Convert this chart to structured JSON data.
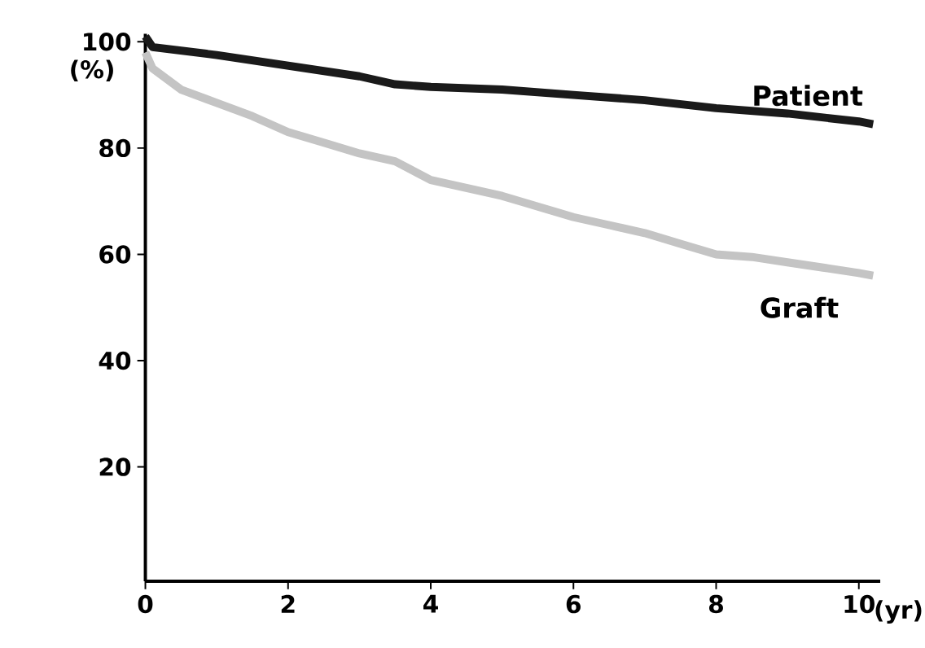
{
  "chart_data": {
    "type": "line",
    "xlabel": "(yr)",
    "ylabel": "(%)",
    "xlim": [
      0,
      10.3
    ],
    "ylim": [
      -1.5,
      101.5
    ],
    "xticks": [
      0,
      2,
      4,
      6,
      8,
      10
    ],
    "yticks": [
      20,
      40,
      60,
      80,
      100
    ],
    "grid": false,
    "line_style": "solid",
    "marker": "none",
    "series": [
      {
        "name": "Patient",
        "color": "#1a1a1a",
        "x": [
          0,
          0.1,
          1,
          2,
          3,
          3.5,
          4,
          5,
          6,
          7,
          8,
          9,
          10,
          10.2
        ],
        "values": [
          101,
          99,
          97.5,
          95.5,
          93.5,
          92,
          91.5,
          91,
          90,
          89,
          87.5,
          86.5,
          85,
          84.5
        ]
      },
      {
        "name": "Graft",
        "color": "#c4c4c4",
        "x": [
          0,
          0.1,
          0.5,
          1,
          1.5,
          2,
          2.5,
          3,
          3.5,
          4,
          4.5,
          5,
          5.5,
          6,
          6.5,
          7,
          7.5,
          8,
          8.5,
          9,
          9.5,
          10,
          10.2
        ],
        "values": [
          98,
          95,
          91,
          88.5,
          86,
          83,
          81,
          79,
          77.5,
          74,
          72.5,
          71,
          69,
          67,
          65.5,
          64,
          62,
          60,
          59.5,
          58.5,
          57.5,
          56.5,
          56
        ]
      }
    ]
  }
}
